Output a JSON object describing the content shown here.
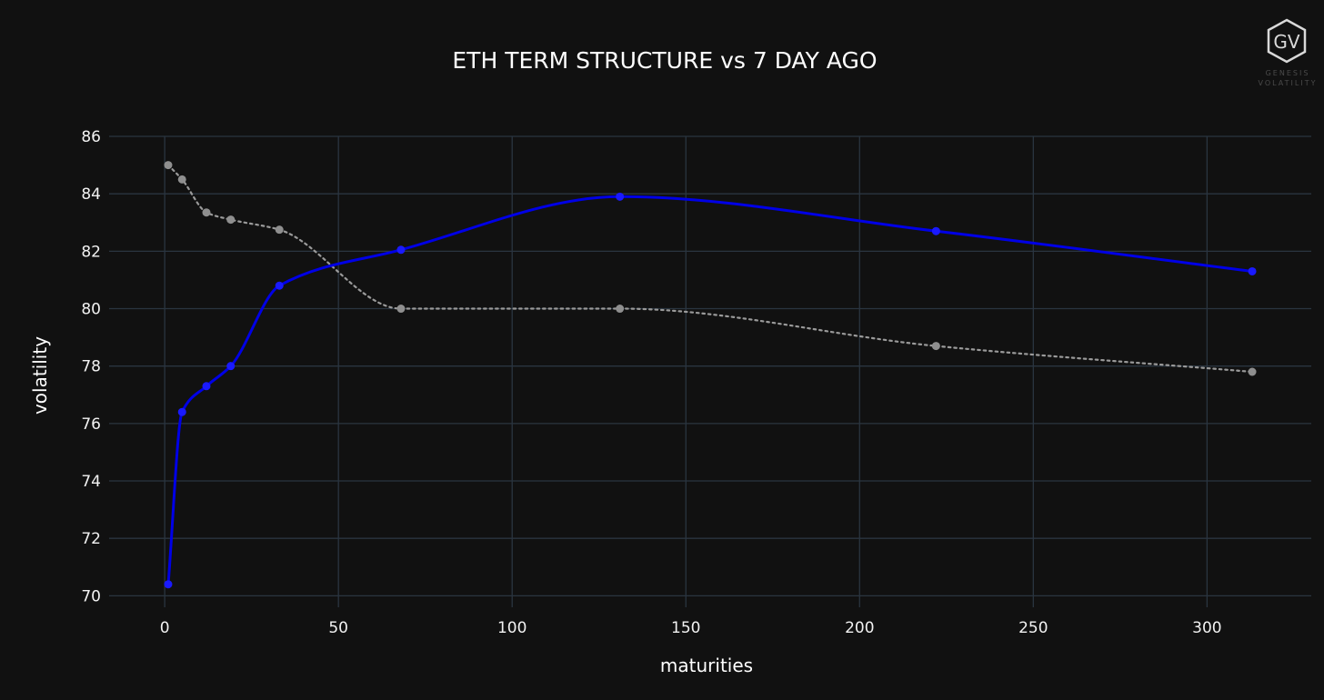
{
  "chart_data": {
    "type": "line",
    "title": "ETH TERM STRUCTURE vs 7 DAY AGO",
    "xlabel": "maturities",
    "ylabel": "volatility",
    "xlim": [
      -16,
      330
    ],
    "ylim": [
      69.6,
      86
    ],
    "x_ticks": [
      0,
      50,
      100,
      150,
      200,
      250,
      300
    ],
    "y_ticks": [
      70,
      72,
      74,
      76,
      78,
      80,
      82,
      84,
      86
    ],
    "grid": true,
    "legend": "none",
    "series": [
      {
        "color": "#0000e6",
        "dash": "solid",
        "marker_color": "#1a1aff",
        "x": [
          1,
          5,
          12,
          19,
          33,
          68,
          131,
          222,
          313
        ],
        "y": [
          70.4,
          76.4,
          77.3,
          78.0,
          80.8,
          82.05,
          83.9,
          82.7,
          81.3
        ]
      },
      {
        "color": "#9a9a9a",
        "dash": "dotted",
        "marker_color": "#8f8f8f",
        "x": [
          1,
          5,
          12,
          19,
          33,
          68,
          131,
          222,
          313
        ],
        "y": [
          85.0,
          84.5,
          83.35,
          83.1,
          82.75,
          80.0,
          80.0,
          78.7,
          77.8
        ]
      }
    ]
  },
  "logo": {
    "mark": "GV",
    "line1": "GENESIS",
    "line2": "VOLATILITY"
  }
}
